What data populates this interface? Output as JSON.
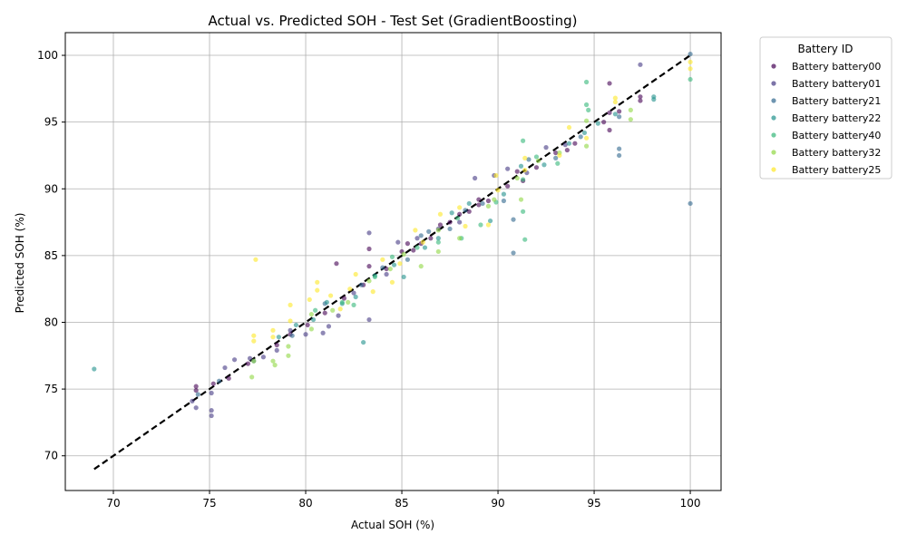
{
  "chart_data": {
    "type": "scatter",
    "title": "Actual vs. Predicted SOH - Test Set (GradientBoosting)",
    "xlabel": "Actual SOH (%)",
    "ylabel": "Predicted SOH (%)",
    "xlim": [
      67.5,
      101.6
    ],
    "ylim": [
      67.4,
      101.7
    ],
    "xticks": [
      70,
      75,
      80,
      85,
      90,
      95,
      100
    ],
    "yticks": [
      70,
      75,
      80,
      85,
      90,
      95,
      100
    ],
    "grid": true,
    "legend": {
      "title": "Battery ID",
      "placement": "outside-top-right"
    },
    "reference_line": {
      "style": "dashed",
      "color": "#000000",
      "x": [
        69.0,
        100.0
      ],
      "y": [
        69.0,
        100.0
      ]
    },
    "series": [
      {
        "name": "Battery battery00",
        "color": "#440154",
        "points": [
          [
            74.3,
            75.2
          ],
          [
            74.3,
            74.9
          ],
          [
            75.2,
            75.4
          ],
          [
            76.0,
            75.8
          ],
          [
            77.0,
            76.9
          ],
          [
            78.5,
            78.3
          ],
          [
            79.2,
            79.1
          ],
          [
            80.1,
            79.8
          ],
          [
            81.0,
            80.7
          ],
          [
            81.6,
            84.4
          ],
          [
            82.0,
            81.8
          ],
          [
            83.0,
            82.8
          ],
          [
            83.3,
            85.5
          ],
          [
            83.3,
            84.2
          ],
          [
            84.2,
            84.0
          ],
          [
            85.0,
            85.3
          ],
          [
            85.3,
            85.9
          ],
          [
            85.6,
            85.4
          ],
          [
            86.0,
            85.9
          ],
          [
            86.5,
            86.3
          ],
          [
            87.0,
            87.3
          ],
          [
            87.5,
            87.5
          ],
          [
            88.0,
            88.1
          ],
          [
            88.5,
            88.3
          ],
          [
            89.0,
            89.2
          ],
          [
            89.0,
            88.8
          ],
          [
            89.5,
            89.1
          ],
          [
            90.5,
            90.2
          ],
          [
            91.0,
            91.3
          ],
          [
            91.3,
            90.6
          ],
          [
            92.0,
            91.6
          ],
          [
            93.0,
            92.7
          ],
          [
            93.6,
            92.9
          ],
          [
            94.0,
            93.4
          ],
          [
            95.5,
            95.0
          ],
          [
            95.8,
            95.7
          ],
          [
            95.8,
            94.4
          ],
          [
            95.8,
            97.9
          ],
          [
            96.3,
            95.8
          ],
          [
            97.4,
            96.9
          ],
          [
            97.4,
            96.6
          ]
        ]
      },
      {
        "name": "Battery battery01",
        "color": "#443983",
        "points": [
          [
            74.1,
            74.1
          ],
          [
            74.3,
            73.6
          ],
          [
            75.1,
            73.0
          ],
          [
            75.1,
            73.4
          ],
          [
            75.1,
            74.7
          ],
          [
            75.8,
            76.6
          ],
          [
            76.3,
            77.2
          ],
          [
            77.1,
            77.3
          ],
          [
            77.8,
            77.4
          ],
          [
            78.5,
            77.9
          ],
          [
            79.2,
            79.4
          ],
          [
            80.0,
            79.1
          ],
          [
            80.9,
            79.2
          ],
          [
            81.2,
            79.7
          ],
          [
            81.7,
            80.5
          ],
          [
            82.5,
            82.2
          ],
          [
            83.3,
            86.7
          ],
          [
            83.3,
            80.2
          ],
          [
            84.2,
            83.6
          ],
          [
            84.8,
            86.0
          ],
          [
            85.8,
            86.3
          ],
          [
            86.9,
            87.0
          ],
          [
            88.0,
            87.5
          ],
          [
            88.8,
            90.8
          ],
          [
            89.8,
            91.0
          ],
          [
            90.5,
            91.5
          ],
          [
            91.5,
            91.2
          ],
          [
            92.5,
            93.1
          ],
          [
            93.5,
            93.3
          ],
          [
            97.4,
            99.3
          ]
        ]
      },
      {
        "name": "Battery battery21",
        "color": "#31688e",
        "points": [
          [
            74.4,
            74.6
          ],
          [
            75.5,
            75.6
          ],
          [
            77.3,
            77.1
          ],
          [
            79.3,
            79.0
          ],
          [
            81.0,
            81.4
          ],
          [
            82.9,
            82.8
          ],
          [
            84.0,
            84.1
          ],
          [
            85.3,
            84.7
          ],
          [
            86.0,
            86.5
          ],
          [
            86.4,
            86.8
          ],
          [
            87.5,
            87.0
          ],
          [
            88.3,
            88.4
          ],
          [
            89.2,
            88.9
          ],
          [
            90.3,
            89.1
          ],
          [
            90.8,
            85.2
          ],
          [
            90.8,
            87.7
          ],
          [
            91.6,
            92.2
          ],
          [
            93.0,
            92.3
          ],
          [
            94.3,
            93.9
          ],
          [
            96.3,
            93.0
          ],
          [
            96.3,
            92.5
          ],
          [
            96.3,
            95.4
          ],
          [
            100.0,
            88.9
          ],
          [
            100.0,
            100.1
          ]
        ]
      },
      {
        "name": "Battery battery22",
        "color": "#21918c",
        "points": [
          [
            69.0,
            76.5
          ],
          [
            78.6,
            78.9
          ],
          [
            79.5,
            79.8
          ],
          [
            80.4,
            80.2
          ],
          [
            81.1,
            81.5
          ],
          [
            81.9,
            81.4
          ],
          [
            82.6,
            81.9
          ],
          [
            83.0,
            78.5
          ],
          [
            83.6,
            83.5
          ],
          [
            84.6,
            84.3
          ],
          [
            85.1,
            83.4
          ],
          [
            86.2,
            85.6
          ],
          [
            86.9,
            86.3
          ],
          [
            87.6,
            88.2
          ],
          [
            88.5,
            88.9
          ],
          [
            89.6,
            87.6
          ],
          [
            90.3,
            89.6
          ],
          [
            91.2,
            91.7
          ],
          [
            92.4,
            91.8
          ],
          [
            93.7,
            93.4
          ],
          [
            94.5,
            94.2
          ],
          [
            95.2,
            94.9
          ],
          [
            96.1,
            95.6
          ],
          [
            98.1,
            96.7
          ],
          [
            98.1,
            96.9
          ]
        ]
      },
      {
        "name": "Battery battery40",
        "color": "#35b779",
        "points": [
          [
            80.5,
            80.9
          ],
          [
            81.9,
            81.5
          ],
          [
            82.5,
            81.3
          ],
          [
            83.6,
            83.4
          ],
          [
            84.5,
            84.9
          ],
          [
            85.8,
            85.6
          ],
          [
            86.9,
            86.0
          ],
          [
            87.9,
            87.8
          ],
          [
            88.1,
            86.3
          ],
          [
            89.1,
            87.3
          ],
          [
            89.9,
            89.0
          ],
          [
            91.3,
            93.6
          ],
          [
            91.3,
            88.3
          ],
          [
            91.4,
            86.2
          ],
          [
            91.3,
            90.7
          ],
          [
            92.0,
            92.4
          ],
          [
            93.1,
            91.9
          ],
          [
            94.6,
            98.0
          ],
          [
            94.6,
            96.3
          ],
          [
            94.7,
            95.9
          ],
          [
            100.0,
            98.2
          ]
        ]
      },
      {
        "name": "Battery battery32",
        "color": "#90d743",
        "points": [
          [
            77.2,
            75.9
          ],
          [
            77.3,
            77.1
          ],
          [
            78.3,
            77.1
          ],
          [
            78.4,
            76.8
          ],
          [
            79.1,
            78.2
          ],
          [
            79.1,
            77.5
          ],
          [
            80.3,
            79.5
          ],
          [
            80.3,
            80.6
          ],
          [
            81.4,
            80.9
          ],
          [
            82.2,
            81.5
          ],
          [
            83.3,
            83.1
          ],
          [
            84.4,
            84.0
          ],
          [
            85.1,
            85.1
          ],
          [
            86.0,
            84.2
          ],
          [
            86.9,
            85.3
          ],
          [
            86.9,
            86.9
          ],
          [
            88.0,
            86.3
          ],
          [
            89.5,
            88.7
          ],
          [
            89.8,
            89.2
          ],
          [
            91.0,
            90.8
          ],
          [
            91.2,
            89.2
          ],
          [
            92.1,
            92.1
          ],
          [
            93.2,
            92.7
          ],
          [
            94.6,
            93.2
          ],
          [
            94.6,
            95.1
          ],
          [
            96.9,
            95.2
          ],
          [
            96.9,
            95.9
          ]
        ]
      },
      {
        "name": "Battery battery25",
        "color": "#fde725",
        "points": [
          [
            77.3,
            78.6
          ],
          [
            77.3,
            79.0
          ],
          [
            77.4,
            84.7
          ],
          [
            78.3,
            79.4
          ],
          [
            78.3,
            78.9
          ],
          [
            79.2,
            80.1
          ],
          [
            79.2,
            81.3
          ],
          [
            80.2,
            81.7
          ],
          [
            80.6,
            82.4
          ],
          [
            80.6,
            83.0
          ],
          [
            81.3,
            82.0
          ],
          [
            81.8,
            81.0
          ],
          [
            82.3,
            82.5
          ],
          [
            82.6,
            83.6
          ],
          [
            83.5,
            82.3
          ],
          [
            84.0,
            84.7
          ],
          [
            84.5,
            83.0
          ],
          [
            84.9,
            84.4
          ],
          [
            85.7,
            86.9
          ],
          [
            86.1,
            86.0
          ],
          [
            87.0,
            88.1
          ],
          [
            88.0,
            88.6
          ],
          [
            88.3,
            87.2
          ],
          [
            89.5,
            87.3
          ],
          [
            89.9,
            91.0
          ],
          [
            90.0,
            89.9
          ],
          [
            91.4,
            92.3
          ],
          [
            91.4,
            91.4
          ],
          [
            93.2,
            92.5
          ],
          [
            93.7,
            94.6
          ],
          [
            94.6,
            93.8
          ],
          [
            96.1,
            96.5
          ],
          [
            96.1,
            96.8
          ],
          [
            100.0,
            99.5
          ],
          [
            100.0,
            99.0
          ]
        ]
      }
    ]
  }
}
